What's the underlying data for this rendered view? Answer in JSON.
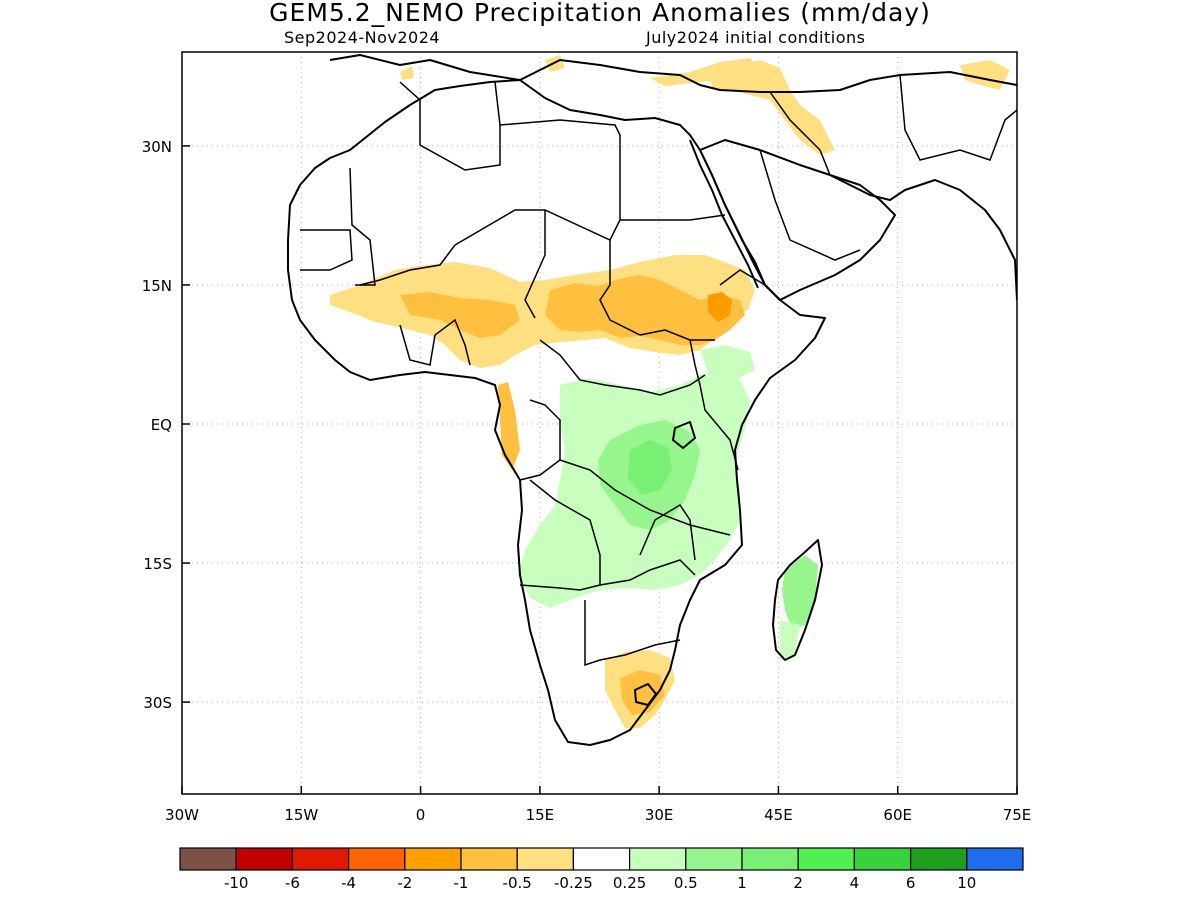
{
  "title": "GEM5.2_NEMO Precipitation Anomalies (mm/day)",
  "period": "Sep2024-Nov2024",
  "init": "July2024 initial conditions",
  "x_ticks": [
    {
      "label": "30W",
      "lon": -30
    },
    {
      "label": "15W",
      "lon": -15
    },
    {
      "label": "0",
      "lon": 0
    },
    {
      "label": "15E",
      "lon": 15
    },
    {
      "label": "30E",
      "lon": 30
    },
    {
      "label": "45E",
      "lon": 45
    },
    {
      "label": "60E",
      "lon": 60
    },
    {
      "label": "75E",
      "lon": 75
    }
  ],
  "y_ticks": [
    {
      "label": "30N",
      "lat": 30
    },
    {
      "label": "15N",
      "lat": 15
    },
    {
      "label": "EQ",
      "lat": 0
    },
    {
      "label": "15S",
      "lat": -15
    },
    {
      "label": "30S",
      "lat": -30
    }
  ],
  "colorbar": {
    "colors": [
      "#7b5245",
      "#c20000",
      "#e01a00",
      "#ff6400",
      "#ffa000",
      "#ffc040",
      "#ffe080",
      "#ffffff",
      "#c8ffbe",
      "#96f58c",
      "#78f073",
      "#50f050",
      "#37d23c",
      "#1ea01e",
      "#1e6eeb"
    ],
    "labels": [
      "-10",
      "-6",
      "-4",
      "-2",
      "-1",
      "-0.5",
      "-0.25",
      "0.25",
      "0.5",
      "1",
      "2",
      "4",
      "6",
      "10"
    ]
  }
}
